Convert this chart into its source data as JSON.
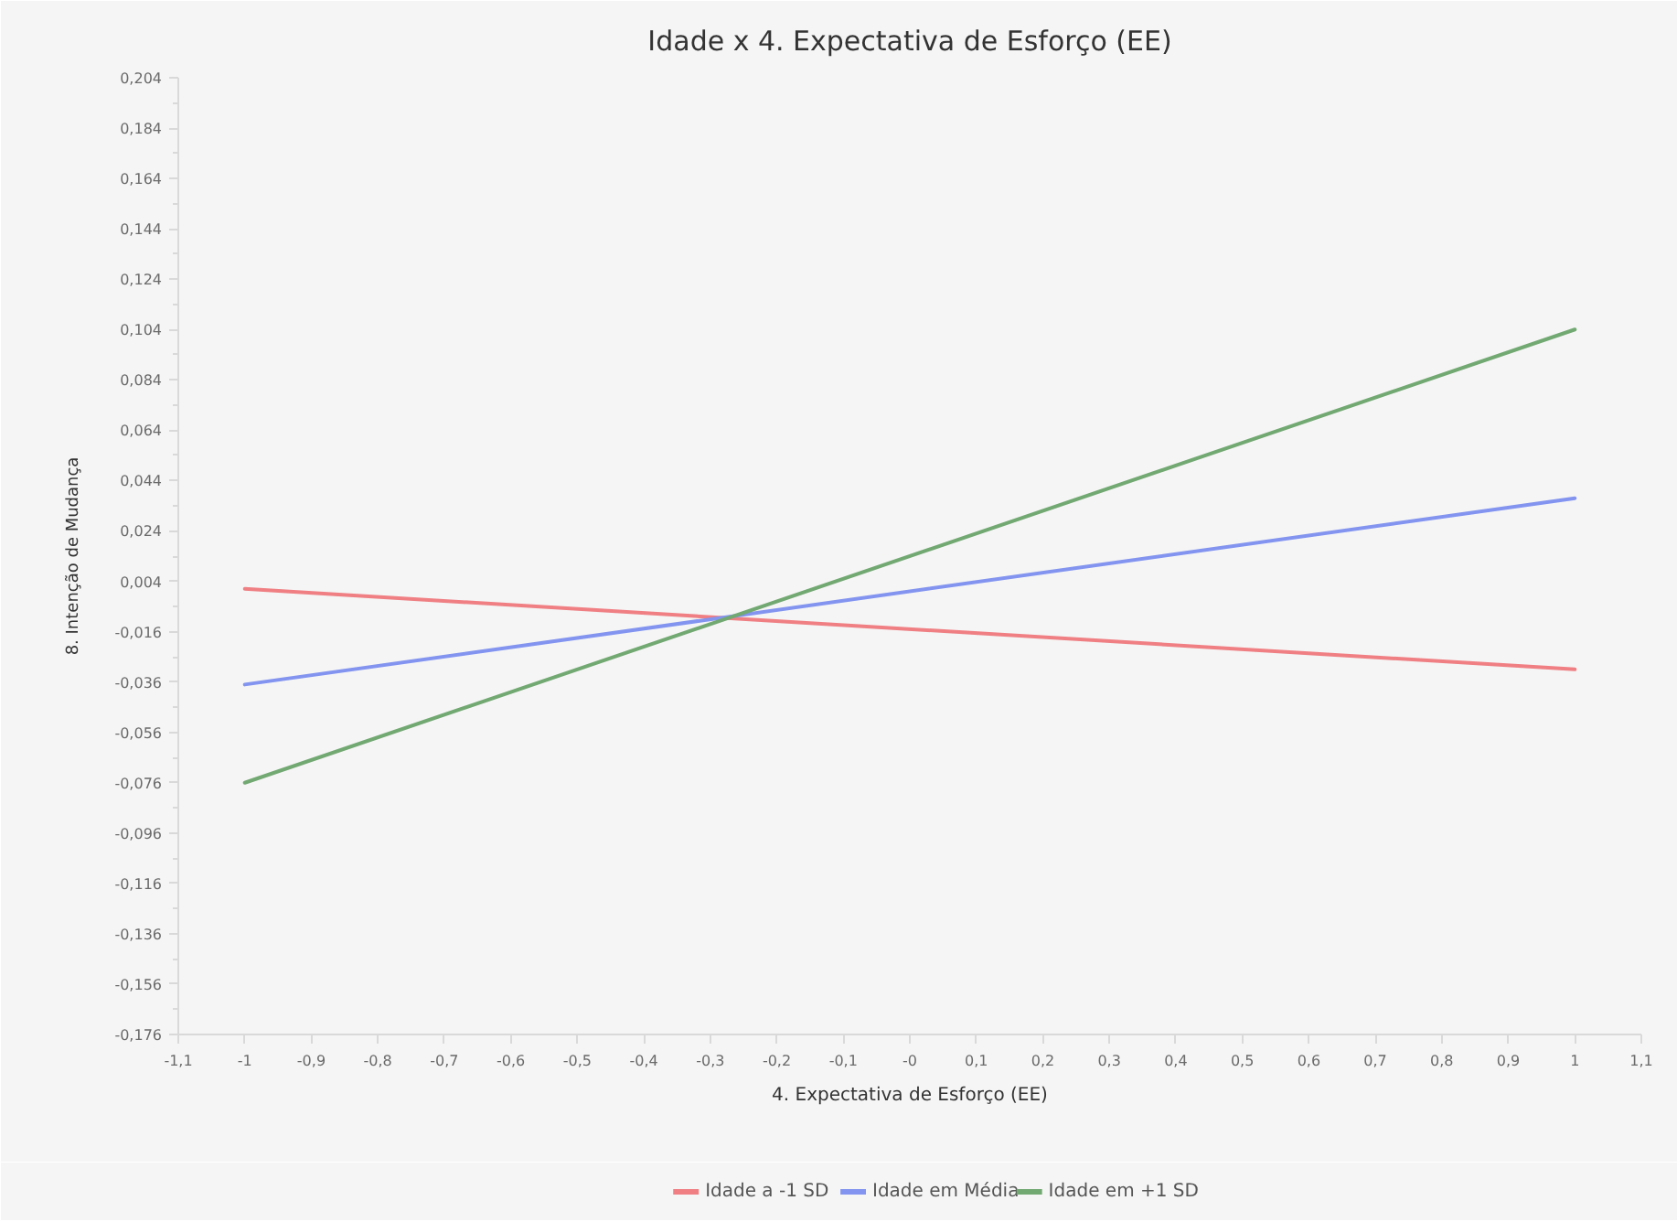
{
  "chart_data": {
    "type": "line",
    "title": "Idade x 4. Expectativa de Esforço (EE)",
    "xlabel": "4. Expectativa de Esforço (EE)",
    "ylabel": "8. Intenção de Mudança",
    "x": [
      -1,
      1
    ],
    "series": [
      {
        "name": "Idade a -1 SD",
        "color": "#ef7f83",
        "values": [
          0.001,
          -0.031
        ]
      },
      {
        "name": "Idade em Média",
        "color": "#8294ef",
        "values": [
          -0.037,
          0.037
        ]
      },
      {
        "name": "Idade em +1 SD",
        "color": "#72a872",
        "values": [
          -0.076,
          0.104
        ]
      }
    ],
    "xlim": [
      -1.1,
      1.1
    ],
    "xticks": [
      {
        "value": -1.1,
        "label": "-1,1"
      },
      -1,
      {
        "value": -0.9,
        "label": "-0,9"
      },
      {
        "value": -0.8,
        "label": "-0,8"
      },
      {
        "value": -0.7,
        "label": "-0,7"
      },
      {
        "value": -0.6,
        "label": "-0,6"
      },
      {
        "value": -0.5,
        "label": "-0,5"
      },
      {
        "value": -0.4,
        "label": "-0,4"
      },
      {
        "value": -0.3,
        "label": "-0,3"
      },
      {
        "value": -0.2,
        "label": "-0,2"
      },
      {
        "value": -0.1,
        "label": "-0,1"
      },
      {
        "value": 0,
        "label": "-0"
      },
      {
        "value": 0.1,
        "label": "0,1"
      },
      {
        "value": 0.2,
        "label": "0,2"
      },
      {
        "value": 0.3,
        "label": "0,3"
      },
      {
        "value": 0.4,
        "label": "0,4"
      },
      {
        "value": 0.5,
        "label": "0,5"
      },
      {
        "value": 0.6,
        "label": "0,6"
      },
      {
        "value": 0.7,
        "label": "0,7"
      },
      {
        "value": 0.8,
        "label": "0,8"
      },
      {
        "value": 0.9,
        "label": "0,9"
      },
      1,
      {
        "value": 1.1,
        "label": "1,1"
      }
    ],
    "ylim": [
      -0.176,
      0.204
    ],
    "yticks": [
      {
        "value": -0.176,
        "label": "-0,176"
      },
      {
        "value": -0.166,
        "label": null
      },
      {
        "value": -0.156,
        "label": "-0,156"
      },
      {
        "value": -0.146,
        "label": null
      },
      {
        "value": -0.136,
        "label": "-0,136"
      },
      {
        "value": -0.126,
        "label": null
      },
      {
        "value": -0.116,
        "label": "-0,116"
      },
      {
        "value": -0.106,
        "label": null
      },
      {
        "value": -0.096,
        "label": "-0,096"
      },
      {
        "value": -0.086,
        "label": null
      },
      {
        "value": -0.076,
        "label": "-0,076"
      },
      {
        "value": -0.066,
        "label": null
      },
      {
        "value": -0.056,
        "label": "-0,056"
      },
      {
        "value": -0.046,
        "label": null
      },
      {
        "value": -0.036,
        "label": "-0,036"
      },
      {
        "value": -0.026,
        "label": null
      },
      {
        "value": -0.016,
        "label": "-0,016"
      },
      {
        "value": -0.006,
        "label": null
      },
      {
        "value": 0.004,
        "label": "0,004"
      },
      {
        "value": 0.014,
        "label": null
      },
      {
        "value": 0.024,
        "label": "0,024"
      },
      {
        "value": 0.034,
        "label": null
      },
      {
        "value": 0.044,
        "label": "0,044"
      },
      {
        "value": 0.054,
        "label": null
      },
      {
        "value": 0.064,
        "label": "0,064"
      },
      {
        "value": 0.074,
        "label": null
      },
      {
        "value": 0.084,
        "label": "0,084"
      },
      {
        "value": 0.094,
        "label": null
      },
      {
        "value": 0.104,
        "label": "0,104"
      },
      {
        "value": 0.114,
        "label": null
      },
      {
        "value": 0.124,
        "label": "0,124"
      },
      {
        "value": 0.134,
        "label": null
      },
      {
        "value": 0.144,
        "label": "0,144"
      },
      {
        "value": 0.154,
        "label": null
      },
      {
        "value": 0.164,
        "label": "0,164"
      },
      {
        "value": 0.174,
        "label": null
      },
      {
        "value": 0.184,
        "label": "0,184"
      },
      {
        "value": 0.194,
        "label": null
      },
      {
        "value": 0.204,
        "label": "0,204"
      }
    ],
    "legend": "bottom",
    "grid": false
  }
}
